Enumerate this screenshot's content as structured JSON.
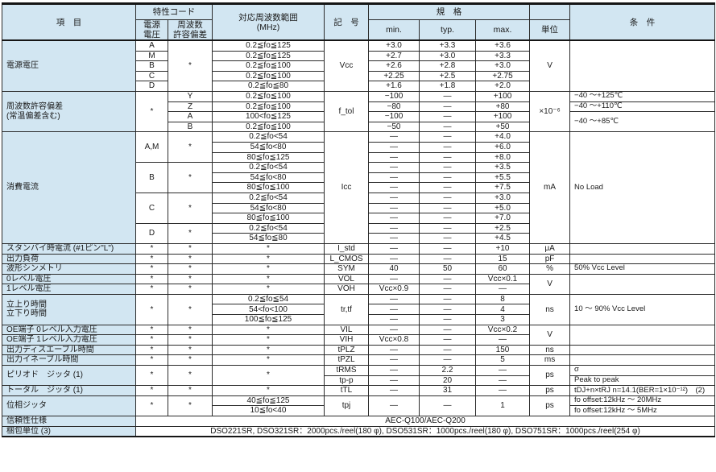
{
  "header": {
    "item": "項　目",
    "char_code": "特性コード",
    "supply_voltage": "電源\n電圧",
    "freq_tolerance": "周波数\n許容偏差",
    "freq_range": "対応周波数範囲\n(MHz)",
    "symbol": "記　号",
    "spec": "規　格",
    "min": "min.",
    "typ": "typ.",
    "max": "max.",
    "unit": "単位",
    "condition": "条　件"
  },
  "colors": {
    "header_bg": "#d2e6f2",
    "border": "#2b2b2b",
    "text": "#1a1a1a"
  },
  "rows": [
    {
      "cells": [
        {
          "t": "電源電圧",
          "rs": 5,
          "cls": "label",
          "n": "row-label"
        },
        {
          "t": "A"
        },
        {
          "t": "*",
          "rs": 5
        },
        {
          "t": "0.2≦fo≦125"
        },
        {
          "t": "Vcc",
          "rs": 5,
          "cls": "sym"
        },
        {
          "t": "+3.0"
        },
        {
          "t": "+3.3"
        },
        {
          "t": "+3.6"
        },
        {
          "t": "V",
          "rs": 5
        },
        {
          "t": "",
          "rs": 5,
          "cls": "cond"
        }
      ]
    },
    {
      "cells": [
        {
          "t": "M"
        },
        {
          "t": "0.2≦fo≦125"
        },
        {
          "t": "+2.7"
        },
        {
          "t": "+3.0"
        },
        {
          "t": "+3.3"
        }
      ]
    },
    {
      "cells": [
        {
          "t": "B"
        },
        {
          "t": "0.2≦fo≦100"
        },
        {
          "t": "+2.6"
        },
        {
          "t": "+2.8"
        },
        {
          "t": "+3.0"
        }
      ]
    },
    {
      "cells": [
        {
          "t": "C"
        },
        {
          "t": "0.2≦fo≦100"
        },
        {
          "t": "+2.25"
        },
        {
          "t": "+2.5"
        },
        {
          "t": "+2.75"
        }
      ]
    },
    {
      "cells": [
        {
          "t": "D"
        },
        {
          "t": "0.2≦fo≦80"
        },
        {
          "t": "+1.6"
        },
        {
          "t": "+1.8"
        },
        {
          "t": "+2.0"
        }
      ]
    },
    {
      "cells": [
        {
          "t": "周波数許容偏差\n(常温偏差含む)",
          "rs": 4,
          "cls": "label",
          "n": "row-label"
        },
        {
          "t": "*",
          "rs": 4
        },
        {
          "t": "Y"
        },
        {
          "t": "0.2≦fo≦100"
        },
        {
          "t": "f_tol",
          "rs": 4,
          "cls": "sym"
        },
        {
          "t": "−100"
        },
        {
          "t": "—"
        },
        {
          "t": "+100"
        },
        {
          "t": "×10⁻⁶",
          "rs": 4
        },
        {
          "t": "−40 ～+125℃",
          "cls": "cond"
        }
      ]
    },
    {
      "cells": [
        {
          "t": "Z"
        },
        {
          "t": "0.2≦fo≦100"
        },
        {
          "t": "−80"
        },
        {
          "t": "—"
        },
        {
          "t": "+80"
        },
        {
          "t": "−40 ～+110℃",
          "cls": "cond"
        }
      ]
    },
    {
      "cells": [
        {
          "t": "A"
        },
        {
          "t": "100<fo≦125"
        },
        {
          "t": "−100"
        },
        {
          "t": "—"
        },
        {
          "t": "+100"
        },
        {
          "t": "−40 ～+85℃",
          "rs": 2,
          "cls": "cond"
        }
      ]
    },
    {
      "cells": [
        {
          "t": "B"
        },
        {
          "t": "0.2≦fo≦100"
        },
        {
          "t": "−50"
        },
        {
          "t": "—"
        },
        {
          "t": "+50"
        }
      ]
    },
    {
      "cells": [
        {
          "t": "消費電流",
          "rs": 11,
          "cls": "label",
          "n": "row-label"
        },
        {
          "t": "A,M",
          "rs": 3
        },
        {
          "t": "*",
          "rs": 3
        },
        {
          "t": "0.2≦fo<54",
          "cls": "dot"
        },
        {
          "t": "Icc",
          "rs": 11,
          "cls": "sym"
        },
        {
          "t": "—",
          "cls": "dot"
        },
        {
          "t": "—",
          "cls": "dot"
        },
        {
          "t": "+4.0",
          "cls": "dot"
        },
        {
          "t": "mA",
          "rs": 11
        },
        {
          "t": "No Load",
          "rs": 11,
          "cls": "cond"
        }
      ]
    },
    {
      "cells": [
        {
          "t": "54≦fo<80",
          "cls": "dot"
        },
        {
          "t": "—",
          "cls": "dot"
        },
        {
          "t": "—",
          "cls": "dot"
        },
        {
          "t": "+6.0",
          "cls": "dot"
        }
      ]
    },
    {
      "cells": [
        {
          "t": "80≦fo≦125"
        },
        {
          "t": "—"
        },
        {
          "t": "—"
        },
        {
          "t": "+8.0"
        }
      ]
    },
    {
      "cells": [
        {
          "t": "B",
          "rs": 3
        },
        {
          "t": "*",
          "rs": 3
        },
        {
          "t": "0.2≦fo<54",
          "cls": "dot"
        },
        {
          "t": "—",
          "cls": "dot"
        },
        {
          "t": "—",
          "cls": "dot"
        },
        {
          "t": "+3.5",
          "cls": "dot"
        }
      ]
    },
    {
      "cells": [
        {
          "t": "54≦fo<80",
          "cls": "dot"
        },
        {
          "t": "—",
          "cls": "dot"
        },
        {
          "t": "—",
          "cls": "dot"
        },
        {
          "t": "+5.5",
          "cls": "dot"
        }
      ]
    },
    {
      "cells": [
        {
          "t": "80≦fo≦100"
        },
        {
          "t": "—"
        },
        {
          "t": "—"
        },
        {
          "t": "+7.5"
        }
      ]
    },
    {
      "cells": [
        {
          "t": "C",
          "rs": 3
        },
        {
          "t": "*",
          "rs": 3
        },
        {
          "t": "0.2≦fo<54",
          "cls": "dot"
        },
        {
          "t": "—",
          "cls": "dot"
        },
        {
          "t": "—",
          "cls": "dot"
        },
        {
          "t": "+3.0",
          "cls": "dot"
        }
      ]
    },
    {
      "cells": [
        {
          "t": "54≦fo<80",
          "cls": "dot"
        },
        {
          "t": "—",
          "cls": "dot"
        },
        {
          "t": "—",
          "cls": "dot"
        },
        {
          "t": "+5.0",
          "cls": "dot"
        }
      ]
    },
    {
      "cells": [
        {
          "t": "80≦fo≦100"
        },
        {
          "t": "—"
        },
        {
          "t": "—"
        },
        {
          "t": "+7.0"
        }
      ]
    },
    {
      "cells": [
        {
          "t": "D",
          "rs": 2
        },
        {
          "t": "*",
          "rs": 2
        },
        {
          "t": "0.2≦fo<54",
          "cls": "dot"
        },
        {
          "t": "—",
          "cls": "dot"
        },
        {
          "t": "—",
          "cls": "dot"
        },
        {
          "t": "+2.5",
          "cls": "dot"
        }
      ]
    },
    {
      "cells": [
        {
          "t": "54≦fo≦80"
        },
        {
          "t": "—"
        },
        {
          "t": "—"
        },
        {
          "t": "+4.5"
        }
      ]
    },
    {
      "cells": [
        {
          "t": "スタンバイ時電流 (#1ピン\"L\")",
          "cls": "label",
          "n": "row-label"
        },
        {
          "t": "*"
        },
        {
          "t": "*"
        },
        {
          "t": "*"
        },
        {
          "t": "I_std",
          "cls": "sym"
        },
        {
          "t": "—"
        },
        {
          "t": "—"
        },
        {
          "t": "+10"
        },
        {
          "t": "μA"
        },
        {
          "t": "",
          "cls": "cond"
        }
      ]
    },
    {
      "cells": [
        {
          "t": "出力負荷",
          "cls": "label",
          "n": "row-label"
        },
        {
          "t": "*"
        },
        {
          "t": "*"
        },
        {
          "t": "*"
        },
        {
          "t": "L_CMOS",
          "cls": "sym"
        },
        {
          "t": "—"
        },
        {
          "t": "—"
        },
        {
          "t": "15"
        },
        {
          "t": "pF"
        },
        {
          "t": "",
          "cls": "cond"
        }
      ]
    },
    {
      "cells": [
        {
          "t": "波形シンメトリ",
          "cls": "label",
          "n": "row-label"
        },
        {
          "t": "*"
        },
        {
          "t": "*"
        },
        {
          "t": "*"
        },
        {
          "t": "SYM",
          "cls": "sym"
        },
        {
          "t": "40"
        },
        {
          "t": "50"
        },
        {
          "t": "60"
        },
        {
          "t": "%"
        },
        {
          "t": "50% Vcc Level",
          "cls": "cond"
        }
      ]
    },
    {
      "cells": [
        {
          "t": "0レベル電圧",
          "cls": "label",
          "n": "row-label"
        },
        {
          "t": "*"
        },
        {
          "t": "*"
        },
        {
          "t": "*"
        },
        {
          "t": "VOL",
          "cls": "sym"
        },
        {
          "t": "—"
        },
        {
          "t": "—"
        },
        {
          "t": "Vcc×0.1"
        },
        {
          "t": "V",
          "rs": 2
        },
        {
          "t": "",
          "rs": 2,
          "cls": "cond"
        }
      ]
    },
    {
      "cells": [
        {
          "t": "1レベル電圧",
          "cls": "label",
          "n": "row-label"
        },
        {
          "t": "*"
        },
        {
          "t": "*"
        },
        {
          "t": "*"
        },
        {
          "t": "VOH",
          "cls": "sym"
        },
        {
          "t": "Vcc×0.9"
        },
        {
          "t": "—"
        },
        {
          "t": "—"
        }
      ]
    },
    {
      "cells": [
        {
          "t": "立上り時間\n立下り時間",
          "rs": 3,
          "cls": "label",
          "n": "row-label"
        },
        {
          "t": "*",
          "rs": 3
        },
        {
          "t": "*",
          "rs": 3
        },
        {
          "t": "0.2≦fo≦54"
        },
        {
          "t": "tr,tf",
          "rs": 3,
          "cls": "sym"
        },
        {
          "t": "—"
        },
        {
          "t": "—"
        },
        {
          "t": "8"
        },
        {
          "t": "ns",
          "rs": 3
        },
        {
          "t": "10 ～ 90% Vcc Level",
          "rs": 3,
          "cls": "cond"
        }
      ]
    },
    {
      "cells": [
        {
          "t": "54<fo<100"
        },
        {
          "t": "—"
        },
        {
          "t": "—"
        },
        {
          "t": "4"
        }
      ]
    },
    {
      "cells": [
        {
          "t": "100≦fo≦125"
        },
        {
          "t": "—"
        },
        {
          "t": "—"
        },
        {
          "t": "3"
        }
      ]
    },
    {
      "cells": [
        {
          "t": "OE端子 0レベル入力電圧",
          "cls": "label",
          "n": "row-label"
        },
        {
          "t": "*"
        },
        {
          "t": "*"
        },
        {
          "t": "*"
        },
        {
          "t": "VIL",
          "cls": "sym"
        },
        {
          "t": "—"
        },
        {
          "t": "—"
        },
        {
          "t": "Vcc×0.2"
        },
        {
          "t": "V",
          "rs": 2
        },
        {
          "t": "",
          "rs": 2,
          "cls": "cond"
        }
      ]
    },
    {
      "cells": [
        {
          "t": "OE端子 1レベル入力電圧",
          "cls": "label",
          "n": "row-label"
        },
        {
          "t": "*"
        },
        {
          "t": "*"
        },
        {
          "t": "*"
        },
        {
          "t": "VIH",
          "cls": "sym"
        },
        {
          "t": "Vcc×0.8"
        },
        {
          "t": "—"
        },
        {
          "t": "—"
        }
      ]
    },
    {
      "cells": [
        {
          "t": "出力ディスエーブル時間",
          "cls": "label",
          "n": "row-label"
        },
        {
          "t": "*"
        },
        {
          "t": "*"
        },
        {
          "t": "*"
        },
        {
          "t": "tPLZ",
          "cls": "sym"
        },
        {
          "t": "—"
        },
        {
          "t": "—"
        },
        {
          "t": "150"
        },
        {
          "t": "ns"
        },
        {
          "t": "",
          "cls": "cond"
        }
      ]
    },
    {
      "cells": [
        {
          "t": "出力イネーブル時間",
          "cls": "label",
          "n": "row-label"
        },
        {
          "t": "*"
        },
        {
          "t": "*"
        },
        {
          "t": "*"
        },
        {
          "t": "tPZL",
          "cls": "sym"
        },
        {
          "t": "—"
        },
        {
          "t": "—"
        },
        {
          "t": "5"
        },
        {
          "t": "ms"
        },
        {
          "t": "",
          "cls": "cond"
        }
      ]
    },
    {
      "cells": [
        {
          "t": "ピリオド　ジッタ (1)",
          "rs": 2,
          "cls": "label",
          "n": "row-label"
        },
        {
          "t": "*",
          "rs": 2
        },
        {
          "t": "*",
          "rs": 2
        },
        {
          "t": "*",
          "rs": 2
        },
        {
          "t": "tRMS",
          "cls": "sym"
        },
        {
          "t": "—"
        },
        {
          "t": "2.2"
        },
        {
          "t": "—"
        },
        {
          "t": "ps",
          "rs": 2
        },
        {
          "t": "σ",
          "cls": "cond"
        }
      ]
    },
    {
      "cells": [
        {
          "t": "tp-p",
          "cls": "sym"
        },
        {
          "t": "—"
        },
        {
          "t": "20"
        },
        {
          "t": "—"
        },
        {
          "t": "Peak to peak",
          "cls": "cond"
        }
      ]
    },
    {
      "cells": [
        {
          "t": "トータル　ジッタ (1)",
          "cls": "label",
          "n": "row-label"
        },
        {
          "t": "*"
        },
        {
          "t": "*"
        },
        {
          "t": "*"
        },
        {
          "t": "tTL",
          "cls": "sym"
        },
        {
          "t": "—"
        },
        {
          "t": "31"
        },
        {
          "t": "—"
        },
        {
          "t": "ps"
        },
        {
          "t": "tDJ+n×tRJ n=14.1(BER=1×10⁻¹²)　(2)",
          "cls": "cond"
        }
      ]
    },
    {
      "cells": [
        {
          "t": "位相ジッタ",
          "rs": 2,
          "cls": "label",
          "n": "row-label"
        },
        {
          "t": "*",
          "rs": 2
        },
        {
          "t": "*",
          "rs": 2
        },
        {
          "t": "40≦fo≦125"
        },
        {
          "t": "tpj",
          "rs": 2,
          "cls": "sym"
        },
        {
          "t": "—",
          "rs": 2
        },
        {
          "t": "—",
          "rs": 2
        },
        {
          "t": "1",
          "rs": 2
        },
        {
          "t": "ps",
          "rs": 2
        },
        {
          "t": "fo offset:12kHz ～ 20MHz",
          "cls": "cond"
        }
      ]
    },
    {
      "cells": [
        {
          "t": "10≦fo<40"
        },
        {
          "t": "fo offset:12kHz ～ 5MHz",
          "cls": "cond"
        }
      ]
    },
    {
      "cells": [
        {
          "t": "信頼性仕様",
          "cls": "label",
          "n": "row-label"
        },
        {
          "t": "AEC-Q100/AEC-Q200",
          "cs": 9,
          "n": "reliability-spec-value"
        }
      ]
    },
    {
      "cells": [
        {
          "t": "梱包単位 (3)",
          "cls": "label",
          "n": "row-label"
        },
        {
          "t": "DSO221SR, DSO321SR：2000pcs./reel(180 φ), DSO531SR：1000pcs./reel(180 φ), DSO751SR：1000pcs./reel(254 φ)",
          "cs": 9,
          "n": "packing-unit-value"
        }
      ]
    }
  ]
}
